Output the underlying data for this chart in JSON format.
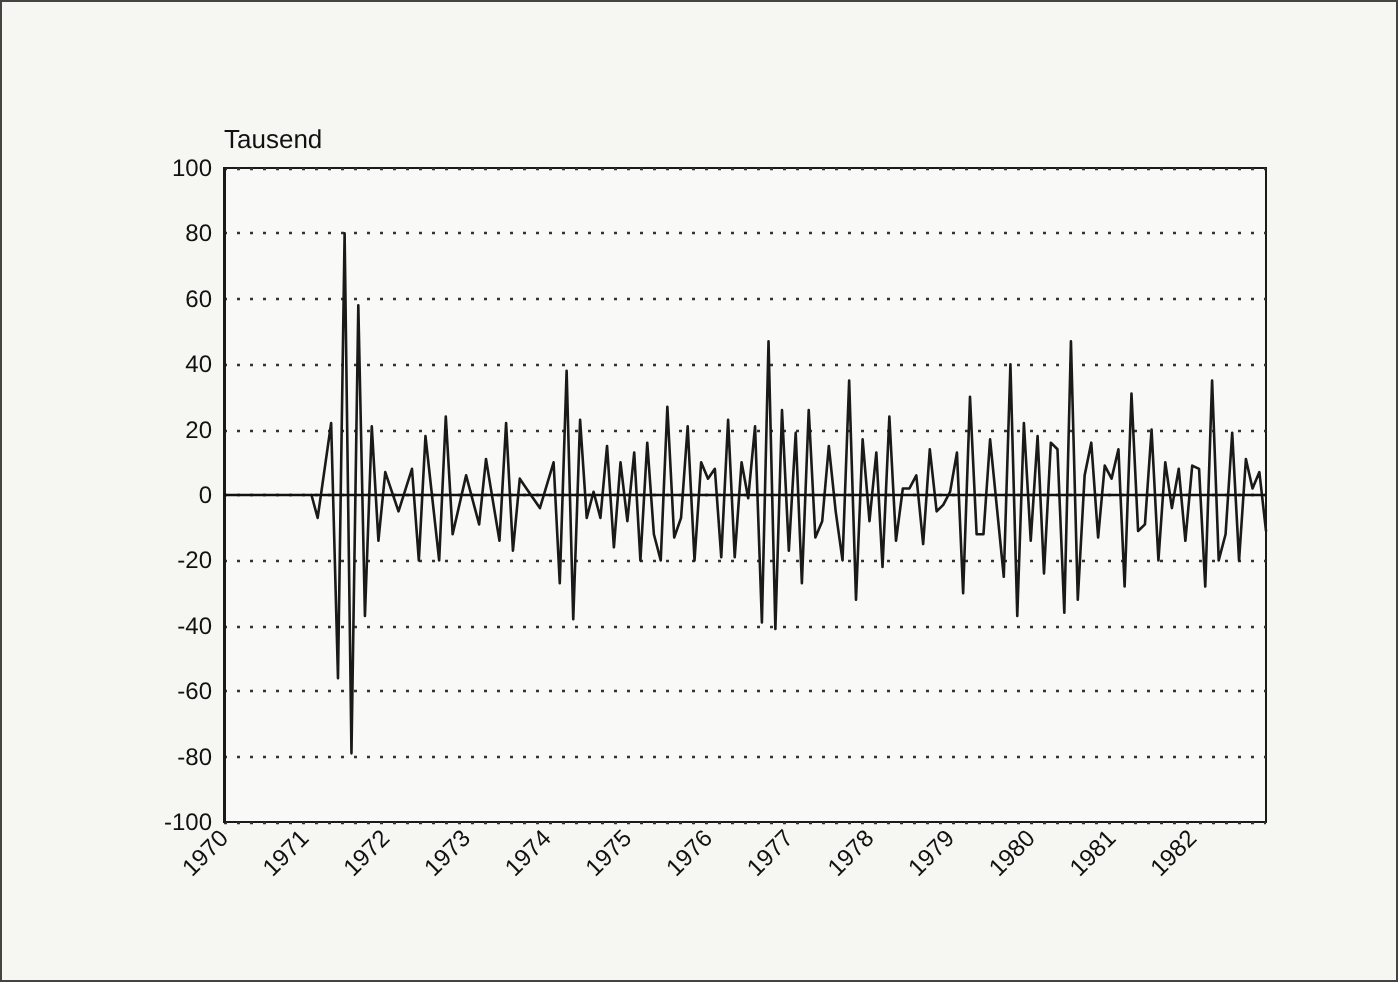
{
  "chart_data": {
    "type": "line",
    "ylabel": "Tausend",
    "color": "#1a1a1a",
    "marker": "none",
    "line_style": "solid",
    "grid": "y",
    "x": [
      "1971-02",
      "1971-03",
      "1971-05",
      "1971-06",
      "1971-07",
      "1971-08",
      "1971-09",
      "1971-10",
      "1971-11",
      "1971-12",
      "1972-01",
      "1972-03",
      "1972-05",
      "1972-06",
      "1972-07",
      "1972-09",
      "1972-10",
      "1972-11",
      "1973-01",
      "1973-03",
      "1973-04",
      "1973-06",
      "1973-07",
      "1973-08",
      "1973-09",
      "1973-10",
      "1973-12",
      "1974-02",
      "1974-03",
      "1974-04",
      "1974-05",
      "1974-06",
      "1974-07",
      "1974-08",
      "1974-09",
      "1974-10",
      "1974-11",
      "1974-12",
      "1975-01",
      "1975-02",
      "1975-03",
      "1975-04",
      "1975-05",
      "1975-06",
      "1975-07",
      "1975-08",
      "1975-09",
      "1975-10",
      "1975-11",
      "1975-12",
      "1976-01",
      "1976-02",
      "1976-03",
      "1976-04",
      "1976-05",
      "1976-06",
      "1976-07",
      "1976-08",
      "1976-09",
      "1976-10",
      "1976-11",
      "1976-12",
      "1977-01",
      "1977-02",
      "1977-03",
      "1977-04",
      "1977-05",
      "1977-06",
      "1977-07",
      "1977-08",
      "1977-09",
      "1977-10",
      "1977-11",
      "1977-12",
      "1978-01",
      "1978-02",
      "1978-03",
      "1978-04",
      "1978-05",
      "1978-06",
      "1978-07",
      "1978-08",
      "1978-09",
      "1978-10",
      "1978-11",
      "1978-12",
      "1979-01",
      "1979-02",
      "1979-03",
      "1979-04",
      "1979-05",
      "1979-06",
      "1979-07",
      "1979-09",
      "1979-10",
      "1979-11",
      "1979-12",
      "1980-01",
      "1980-02",
      "1980-03",
      "1980-04",
      "1980-05",
      "1980-06",
      "1980-07",
      "1980-08",
      "1980-09",
      "1980-10",
      "1980-11",
      "1980-12",
      "1981-01",
      "1981-02",
      "1981-03",
      "1981-04",
      "1981-05",
      "1981-06",
      "1981-07",
      "1981-08",
      "1981-09",
      "1981-10",
      "1981-11",
      "1981-12",
      "1982-01",
      "1982-02",
      "1982-03",
      "1982-04",
      "1982-05",
      "1982-06",
      "1982-07",
      "1982-08",
      "1982-09",
      "1982-10",
      "1982-11",
      "1982-12"
    ],
    "values": [
      0,
      -7,
      22,
      -56,
      80,
      -79,
      58,
      -37,
      21,
      -14,
      7,
      -5,
      8,
      -20,
      18,
      -20,
      24,
      -12,
      6,
      -9,
      11,
      -14,
      22,
      -17,
      5,
      2,
      -4,
      10,
      -27,
      38,
      -38,
      23,
      -7,
      1,
      -7,
      15,
      -16,
      10,
      -8,
      13,
      -20,
      16,
      -12,
      -20,
      27,
      -13,
      -7,
      21,
      -20,
      10,
      5,
      8,
      -19,
      23,
      -19,
      10,
      -1,
      21,
      -39,
      47,
      -41,
      26,
      -17,
      19,
      -27,
      26,
      -13,
      -8,
      15,
      -5,
      -20,
      35,
      -32,
      17,
      -8,
      13,
      -22,
      24,
      -14,
      2,
      2,
      6,
      -15,
      14,
      -5,
      -3,
      1,
      13,
      -30,
      30,
      -12,
      -12,
      17,
      -25,
      40,
      -37,
      22,
      -14,
      18,
      -24,
      16,
      14,
      -36,
      47,
      -32,
      6,
      16,
      -13,
      9,
      5,
      14,
      -28,
      31,
      -11,
      -9,
      20,
      -20,
      10,
      -4,
      8,
      -14,
      9,
      8,
      -28,
      35,
      -20,
      -12,
      19,
      -20,
      11,
      2,
      7,
      -11
    ],
    "xlim": [
      "1970-01",
      "1982-12"
    ],
    "xticks": [
      "1970",
      "1971",
      "1972",
      "1973",
      "1974",
      "1975",
      "1976",
      "1977",
      "1978",
      "1979",
      "1980",
      "1981",
      "1982"
    ],
    "ylim": [
      -100,
      100
    ],
    "yticks": [
      -100,
      -80,
      -60,
      -40,
      -20,
      0,
      20,
      40,
      60,
      80,
      100
    ],
    "ref_lines": [
      {
        "axis": "y",
        "value": 0
      }
    ]
  }
}
